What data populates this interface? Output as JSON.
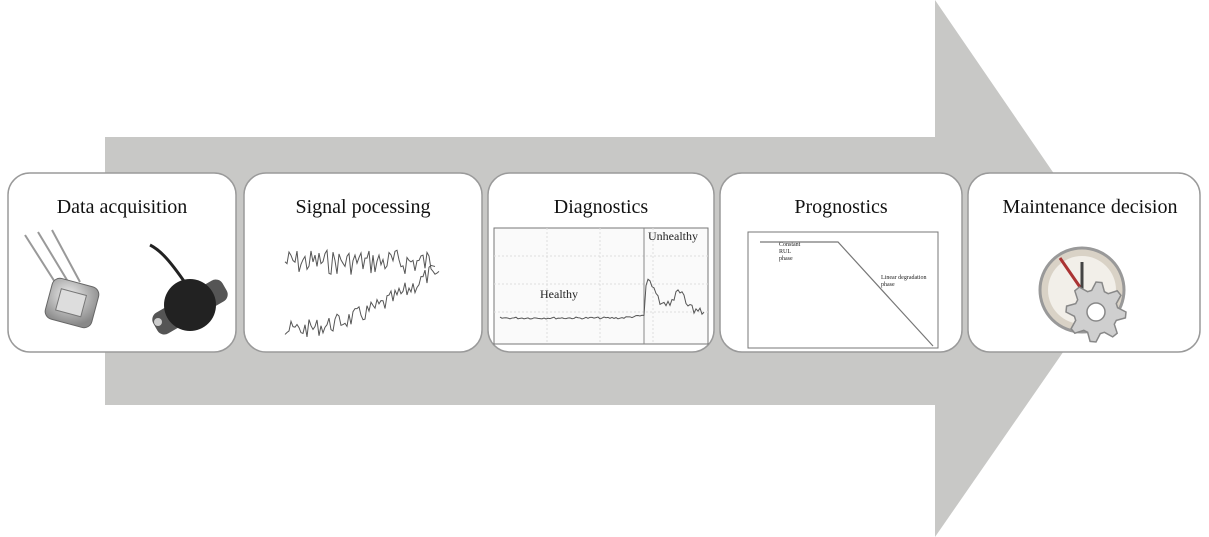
{
  "stages": [
    {
      "title": "Data acquisition"
    },
    {
      "title": "Signal pocessing"
    },
    {
      "title": "Diagnostics",
      "labels": [
        "Healthy",
        "Unhealthy"
      ]
    },
    {
      "title": "Prognostics",
      "labels": [
        [
          "Constant",
          "RUL",
          "phase"
        ],
        [
          "Linear degradation",
          "phase"
        ]
      ]
    },
    {
      "title": "Maintenance decision"
    }
  ]
}
